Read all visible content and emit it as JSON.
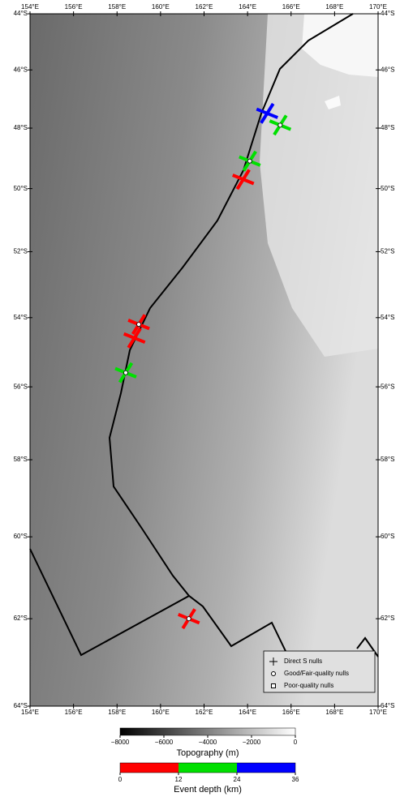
{
  "map": {
    "lonlim": [
      154,
      170
    ],
    "latlim": [
      -44,
      -64
    ],
    "lon_ticks": [
      {
        "value": 154,
        "label": "154°E"
      },
      {
        "value": 156,
        "label": "156°E"
      },
      {
        "value": 158,
        "label": "158°E"
      },
      {
        "value": 160,
        "label": "160°E"
      },
      {
        "value": 162,
        "label": "162°E"
      },
      {
        "value": 164,
        "label": "164°E"
      },
      {
        "value": 166,
        "label": "166°E"
      },
      {
        "value": 168,
        "label": "168°E"
      },
      {
        "value": 170,
        "label": "170°E"
      }
    ],
    "lat_ticks": [
      {
        "value": -44,
        "label": "44°S"
      },
      {
        "value": -46,
        "label": "46°S"
      },
      {
        "value": -48,
        "label": "48°S"
      },
      {
        "value": -50,
        "label": "50°S"
      },
      {
        "value": -52,
        "label": "52°S"
      },
      {
        "value": -54,
        "label": "54°S"
      },
      {
        "value": -56,
        "label": "56°S"
      },
      {
        "value": -58,
        "label": "58°S"
      },
      {
        "value": -60,
        "label": "60°S"
      },
      {
        "value": -62,
        "label": "62°S"
      },
      {
        "value": -64,
        "label": "64°S"
      }
    ],
    "nulls": [
      {
        "lon": 164.9,
        "lat": -47.5,
        "color": "#0000ff",
        "circle": false
      },
      {
        "lon": 165.5,
        "lat": -47.9,
        "color": "#00e000",
        "circle": true
      },
      {
        "lon": 164.1,
        "lat": -49.1,
        "color": "#00e000",
        "circle": true
      },
      {
        "lon": 163.8,
        "lat": -49.7,
        "color": "#ff0000",
        "circle": false
      },
      {
        "lon": 159.0,
        "lat": -54.2,
        "color": "#ff0000",
        "circle": true
      },
      {
        "lon": 158.8,
        "lat": -54.6,
        "color": "#ff0000",
        "circle": false
      },
      {
        "lon": 158.4,
        "lat": -55.6,
        "color": "#00e000",
        "circle": true
      },
      {
        "lon": 161.3,
        "lat": -62.0,
        "color": "#ff0000",
        "circle": true
      }
    ],
    "legend": [
      "Direct S nulls",
      "Good/Fair-quality nulls",
      "Poor-quality nulls"
    ]
  },
  "topography_colorbar": {
    "title": "Topography (m)",
    "lim": [
      -8000,
      0
    ],
    "ticks": [
      {
        "value": -8000,
        "label": "−8000"
      },
      {
        "value": -6000,
        "label": "−6000"
      },
      {
        "value": -4000,
        "label": "−4000"
      },
      {
        "value": -2000,
        "label": "−2000"
      },
      0
    ]
  },
  "depth_colorbar": {
    "title": "Event depth (km)",
    "bins": [
      0,
      12,
      24,
      36
    ],
    "colors": [
      "#ff0000",
      "#00e000",
      "#0000ff"
    ]
  }
}
